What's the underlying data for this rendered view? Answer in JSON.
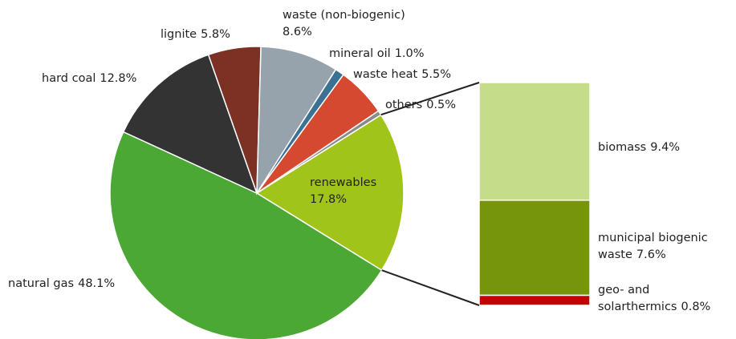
{
  "chart_data": {
    "type": "pie-of-bar",
    "pie": {
      "categories": [
        "renewables",
        "natural gas",
        "hard coal",
        "lignite",
        "waste (non-biogenic)",
        "mineral oil",
        "waste heat",
        "others"
      ],
      "values": [
        17.8,
        48.1,
        12.8,
        5.8,
        8.6,
        1.0,
        5.5,
        0.5
      ],
      "value_labels": [
        "17.8%",
        "48.1%",
        "12.8%",
        "5.8%",
        "8.6%",
        "1.0%",
        "5.5%",
        "0.5%"
      ],
      "colors": [
        "#a1c41a",
        "#4ca834",
        "#333333",
        "#7c3124",
        "#96a3ad",
        "#3b7192",
        "#d4492f",
        "#8a8a8a"
      ]
    },
    "bar": {
      "categories": [
        "biomass",
        "municipal biogenic waste",
        "geo- and solarthermics"
      ],
      "values": [
        9.4,
        7.6,
        0.8
      ],
      "value_labels": [
        "9.4%",
        "7.6%",
        "0.8%"
      ],
      "colors": [
        "#c5dc8a",
        "#77950c",
        "#c40000"
      ]
    }
  }
}
